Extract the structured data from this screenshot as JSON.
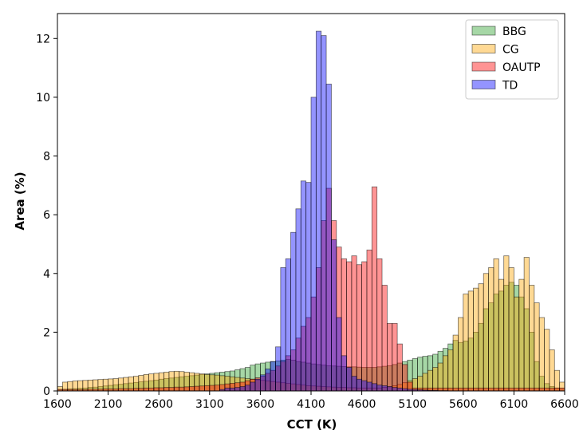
{
  "chart_data": {
    "type": "histogram",
    "title": "",
    "xlabel": "CCT (K)",
    "ylabel": "Area (%)",
    "xlim": [
      1600,
      6600
    ],
    "ylim": [
      0,
      12.85
    ],
    "bin_width": 50,
    "x_start": 1600,
    "xticks": [
      1600,
      2100,
      2600,
      3100,
      3600,
      4100,
      4600,
      5100,
      5600,
      6100,
      6600
    ],
    "yticks": [
      0,
      2,
      4,
      6,
      8,
      10,
      12
    ],
    "grid": false,
    "legend_position": "top-right",
    "series": [
      {
        "name": "BBG",
        "color": "#2ca02c",
        "values": [
          0.05,
          0.06,
          0.07,
          0.08,
          0.09,
          0.1,
          0.12,
          0.13,
          0.15,
          0.17,
          0.19,
          0.21,
          0.23,
          0.25,
          0.27,
          0.29,
          0.31,
          0.33,
          0.35,
          0.37,
          0.4,
          0.42,
          0.44,
          0.46,
          0.48,
          0.5,
          0.52,
          0.54,
          0.56,
          0.58,
          0.6,
          0.62,
          0.64,
          0.66,
          0.68,
          0.72,
          0.76,
          0.8,
          0.88,
          0.92,
          0.95,
          0.98,
          1.0,
          1.02,
          1.05,
          1.07,
          1.05,
          1.0,
          0.98,
          0.95,
          0.92,
          0.9,
          0.88,
          0.86,
          0.85,
          0.84,
          0.83,
          0.82,
          0.82,
          0.81,
          0.8,
          0.8,
          0.8,
          0.82,
          0.84,
          0.86,
          0.9,
          0.95,
          1.0,
          1.05,
          1.1,
          1.15,
          1.18,
          1.2,
          1.25,
          1.35,
          1.45,
          1.6,
          1.72,
          1.65,
          1.7,
          1.8,
          2.0,
          2.3,
          2.8,
          3.0,
          3.3,
          3.4,
          3.6,
          3.7,
          3.6,
          3.2,
          2.8,
          2.0,
          1.0,
          0.5,
          0.25,
          0.15,
          0.1,
          0.08
        ]
      },
      {
        "name": "CG",
        "color": "#ffa500",
        "values": [
          0.15,
          0.3,
          0.32,
          0.34,
          0.35,
          0.36,
          0.37,
          0.38,
          0.39,
          0.4,
          0.41,
          0.42,
          0.44,
          0.46,
          0.48,
          0.5,
          0.53,
          0.56,
          0.58,
          0.6,
          0.62,
          0.64,
          0.66,
          0.67,
          0.66,
          0.64,
          0.62,
          0.6,
          0.58,
          0.56,
          0.55,
          0.54,
          0.52,
          0.5,
          0.48,
          0.46,
          0.44,
          0.42,
          0.4,
          0.38,
          0.36,
          0.34,
          0.32,
          0.3,
          0.28,
          0.26,
          0.24,
          0.22,
          0.2,
          0.18,
          0.17,
          0.16,
          0.15,
          0.14,
          0.13,
          0.12,
          0.12,
          0.11,
          0.11,
          0.1,
          0.1,
          0.1,
          0.1,
          0.1,
          0.12,
          0.14,
          0.18,
          0.22,
          0.28,
          0.35,
          0.42,
          0.5,
          0.6,
          0.7,
          0.8,
          0.95,
          1.2,
          1.4,
          1.9,
          2.5,
          3.3,
          3.4,
          3.5,
          3.65,
          4.0,
          4.2,
          4.5,
          3.8,
          4.6,
          4.2,
          3.2,
          3.8,
          4.55,
          3.6,
          3.0,
          2.5,
          2.1,
          1.4,
          0.7,
          0.3
        ]
      },
      {
        "name": "OAUTP",
        "color": "#ff0000",
        "values": [
          0.05,
          0.05,
          0.05,
          0.05,
          0.05,
          0.05,
          0.06,
          0.06,
          0.06,
          0.07,
          0.07,
          0.07,
          0.08,
          0.08,
          0.08,
          0.09,
          0.09,
          0.1,
          0.1,
          0.11,
          0.11,
          0.12,
          0.12,
          0.13,
          0.13,
          0.14,
          0.15,
          0.16,
          0.17,
          0.18,
          0.19,
          0.2,
          0.22,
          0.24,
          0.26,
          0.28,
          0.3,
          0.35,
          0.4,
          0.45,
          0.5,
          0.6,
          0.7,
          0.85,
          1.0,
          1.2,
          1.4,
          1.8,
          2.2,
          2.5,
          3.2,
          4.2,
          5.8,
          6.9,
          5.8,
          4.9,
          4.5,
          4.4,
          4.6,
          4.3,
          4.4,
          4.8,
          6.95,
          4.5,
          3.6,
          2.3,
          2.3,
          1.6,
          0.9,
          0.3,
          0.1,
          0.1,
          0.1,
          0.1,
          0.1,
          0.1,
          0.1,
          0.1,
          0.1,
          0.1,
          0.1,
          0.1,
          0.1,
          0.1,
          0.1,
          0.1,
          0.1,
          0.1,
          0.1,
          0.1,
          0.1,
          0.1,
          0.1,
          0.1,
          0.1,
          0.1,
          0.1,
          0.1,
          0.1,
          0.1
        ]
      },
      {
        "name": "TD",
        "color": "#0000ff",
        "values": [
          0.0,
          0.0,
          0.0,
          0.0,
          0.0,
          0.0,
          0.0,
          0.0,
          0.0,
          0.0,
          0.0,
          0.0,
          0.0,
          0.0,
          0.0,
          0.0,
          0.0,
          0.0,
          0.0,
          0.0,
          0.0,
          0.0,
          0.0,
          0.0,
          0.0,
          0.0,
          0.0,
          0.0,
          0.0,
          0.0,
          0.0,
          0.0,
          0.05,
          0.1,
          0.1,
          0.12,
          0.15,
          0.2,
          0.3,
          0.4,
          0.55,
          0.75,
          1.0,
          1.5,
          4.2,
          4.5,
          5.4,
          6.2,
          7.15,
          7.1,
          10.0,
          12.25,
          12.1,
          10.45,
          5.15,
          2.5,
          1.2,
          0.8,
          0.5,
          0.4,
          0.35,
          0.3,
          0.25,
          0.2,
          0.18,
          0.15,
          0.12,
          0.1,
          0.08,
          0.06,
          0.05,
          0.04,
          0.03,
          0.02,
          0.02,
          0.01,
          0.01,
          0.0,
          0.0,
          0.0,
          0.0,
          0.0,
          0.0,
          0.0,
          0.0,
          0.0,
          0.0,
          0.0,
          0.0,
          0.0,
          0.0,
          0.0,
          0.0,
          0.0,
          0.0,
          0.0,
          0.0,
          0.0,
          0.0,
          0.0
        ]
      }
    ]
  }
}
